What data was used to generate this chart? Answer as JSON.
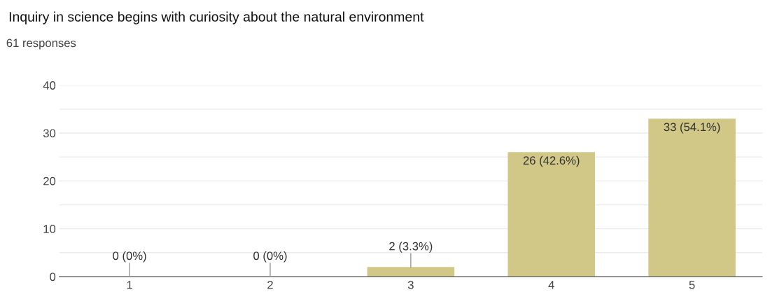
{
  "chart_data": {
    "type": "bar",
    "title": "Inquiry in science begins with curiosity about the natural environment",
    "subtitle": "61 responses",
    "categories": [
      "1",
      "2",
      "3",
      "4",
      "5"
    ],
    "values": [
      0,
      0,
      2,
      26,
      33
    ],
    "value_labels": [
      "0 (0%)",
      "0 (0%)",
      "2 (3.3%)",
      "26 (42.6%)",
      "33 (54.1%)"
    ],
    "color": "#d1c786",
    "ylim": [
      0,
      40
    ],
    "yticks": [
      0,
      {
        "value": 5,
        "label": null
      },
      10,
      {
        "value": 15,
        "label": null
      },
      20,
      {
        "value": 25,
        "label": null
      },
      30,
      {
        "value": 35,
        "label": null
      },
      40
    ],
    "grid": "y"
  }
}
